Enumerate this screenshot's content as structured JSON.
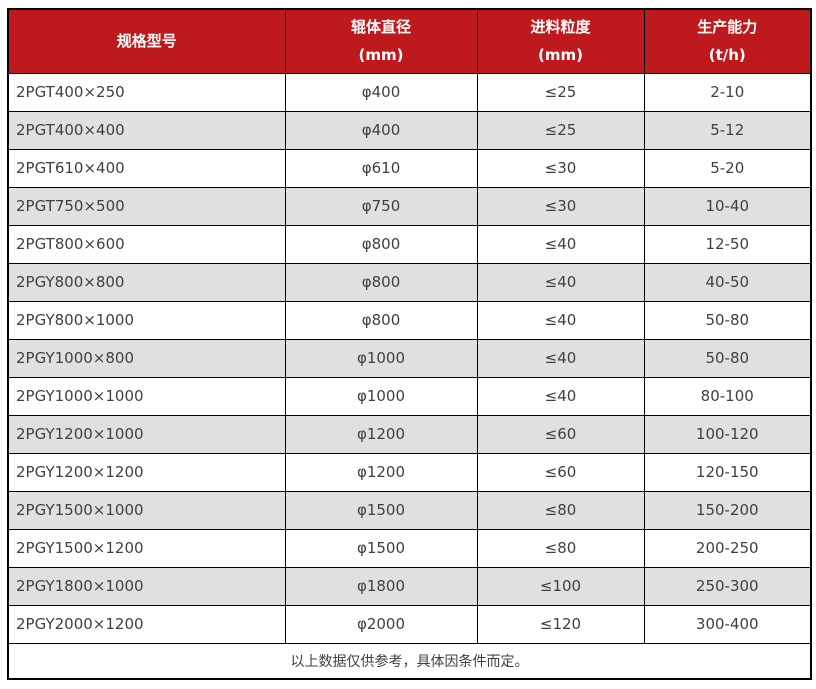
{
  "table": {
    "columns": [
      {
        "label": "规格型号",
        "unit": ""
      },
      {
        "label": "辊体直径",
        "unit": "(mm)"
      },
      {
        "label": "进料粒度",
        "unit": "(mm)"
      },
      {
        "label": "生产能力",
        "unit": "(t/h)"
      }
    ],
    "rows": [
      [
        "2PGT400×250",
        "φ400",
        "≤25",
        "2-10"
      ],
      [
        "2PGT400×400",
        "φ400",
        "≤25",
        "5-12"
      ],
      [
        "2PGT610×400",
        "φ610",
        "≤30",
        "5-20"
      ],
      [
        "2PGT750×500",
        "φ750",
        "≤30",
        "10-40"
      ],
      [
        "2PGT800×600",
        "φ800",
        "≤40",
        "12-50"
      ],
      [
        "2PGY800×800",
        "φ800",
        "≤40",
        "40-50"
      ],
      [
        "2PGY800×1000",
        "φ800",
        "≤40",
        "50-80"
      ],
      [
        "2PGY1000×800",
        "φ1000",
        "≤40",
        "50-80"
      ],
      [
        "2PGY1000×1000",
        "φ1000",
        "≤40",
        "80-100"
      ],
      [
        "2PGY1200×1000",
        "φ1200",
        "≤60",
        "100-120"
      ],
      [
        "2PGY1200×1200",
        "φ1200",
        "≤60",
        "120-150"
      ],
      [
        "2PGY1500×1000",
        "φ1500",
        "≤80",
        "150-200"
      ],
      [
        "2PGY1500×1200",
        "φ1500",
        "≤80",
        "200-250"
      ],
      [
        "2PGY1800×1000",
        "φ1800",
        "≤100",
        "250-300"
      ],
      [
        "2PGY2000×1200",
        "φ2000",
        "≤120",
        "300-400"
      ]
    ],
    "footnote": "以上数据仅供参考，具体因条件而定。",
    "colors": {
      "header_bg": "#be1a1e",
      "header_text": "#ffffff",
      "row_bg": "#ffffff",
      "row_alt_bg": "#e0e0e0",
      "border": "#000000",
      "body_text": "#404040"
    }
  }
}
